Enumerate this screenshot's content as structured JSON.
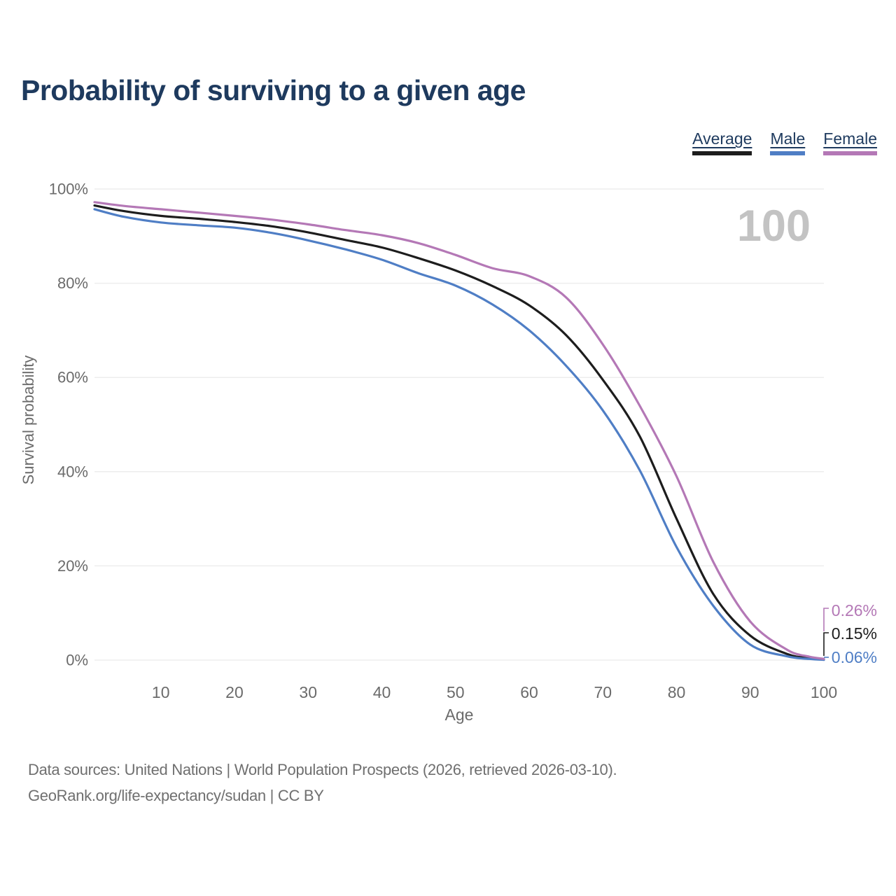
{
  "header": {
    "title": "Probability of surviving to a given age"
  },
  "legend": {
    "items": [
      {
        "label": "Average",
        "color": "#1d1d1d"
      },
      {
        "label": "Male",
        "color": "#4f7ec5"
      },
      {
        "label": "Female",
        "color": "#b478b6"
      }
    ]
  },
  "watermark": {
    "value": "100"
  },
  "chart_data": {
    "type": "line",
    "title": "Probability of surviving to a given age",
    "xlabel": "Age",
    "ylabel": "Survival probability",
    "xlim": [
      1,
      100
    ],
    "ylim": [
      0,
      100
    ],
    "grid": "horizontal-only",
    "legend_position": "top-right",
    "x_ticks": [
      10,
      20,
      30,
      40,
      50,
      60,
      70,
      80,
      90,
      100
    ],
    "y_ticks": [
      {
        "value": 0,
        "label": "0%"
      },
      {
        "value": 20,
        "label": "20%"
      },
      {
        "value": 40,
        "label": "40%"
      },
      {
        "value": 60,
        "label": "60%"
      },
      {
        "value": 80,
        "label": "80%"
      },
      {
        "value": 100,
        "label": "100%"
      }
    ],
    "x": [
      1,
      5,
      10,
      15,
      20,
      25,
      30,
      35,
      40,
      45,
      50,
      55,
      60,
      65,
      70,
      75,
      80,
      85,
      90,
      95,
      98,
      100
    ],
    "series": [
      {
        "name": "Average",
        "color": "#1d1d1d",
        "end_label": "0.15%",
        "values": [
          96.5,
          95.3,
          94.3,
          93.7,
          93.0,
          92.1,
          90.8,
          89.2,
          87.6,
          85.3,
          82.7,
          79.4,
          75.3,
          69.0,
          59.5,
          47.5,
          30.0,
          14.0,
          5.2,
          1.3,
          0.45,
          0.15
        ]
      },
      {
        "name": "Male",
        "color": "#4f7ec5",
        "end_label": "0.06%",
        "values": [
          95.7,
          94.1,
          92.9,
          92.3,
          91.8,
          90.7,
          89.1,
          87.2,
          85.0,
          82.1,
          79.5,
          75.5,
          70.0,
          62.5,
          53.0,
          40.3,
          24.0,
          11.5,
          3.3,
          0.8,
          0.25,
          0.06
        ]
      },
      {
        "name": "Female",
        "color": "#b478b6",
        "end_label": "0.26%",
        "values": [
          97.2,
          96.4,
          95.7,
          95.0,
          94.3,
          93.5,
          92.5,
          91.3,
          90.2,
          88.5,
          86.0,
          83.2,
          81.5,
          77.0,
          67.0,
          54.0,
          39.0,
          20.8,
          8.2,
          2.2,
          0.75,
          0.26
        ]
      }
    ]
  },
  "footer": {
    "line1": "Data sources: United Nations | World Population Prospects (2026, retrieved 2026-03-10).",
    "line2": "GeoRank.org/life-expectancy/sudan | CC BY"
  },
  "colors": {
    "title": "#1e3a5e",
    "tick_label": "#6b6b6b",
    "axis_title": "#6b6b6b",
    "gridline": "#ededed",
    "watermark": "#c3c3c3",
    "footer": "#6f6f6f"
  }
}
